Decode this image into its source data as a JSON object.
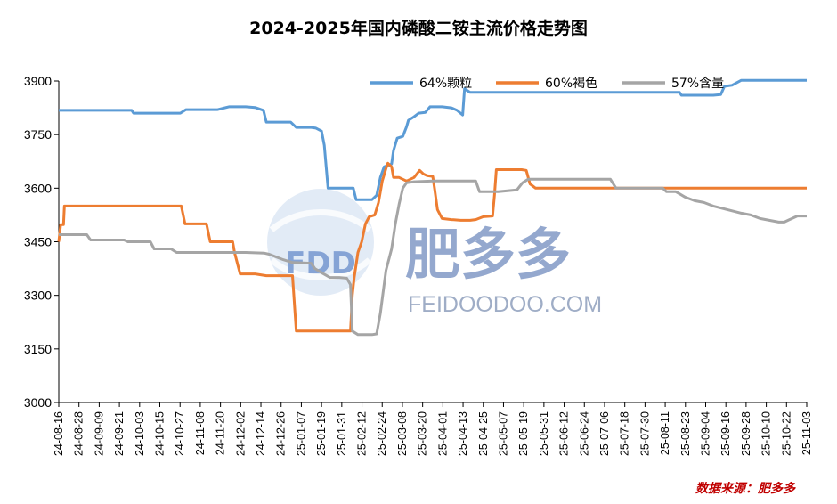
{
  "chart_data": {
    "type": "line",
    "title": "2024-2025年国内磷酸二铵主流价格走势图",
    "source_note": "数据来源：肥多多",
    "ylim": [
      3000,
      3900
    ],
    "yticks": [
      3000,
      3150,
      3300,
      3450,
      3600,
      3750,
      3900
    ],
    "x_tick_labels": [
      "24-08-16",
      "24-08-28",
      "24-09-09",
      "24-09-21",
      "24-10-03",
      "24-10-15",
      "24-10-27",
      "24-11-08",
      "24-11-20",
      "24-12-02",
      "24-12-14",
      "24-12-26",
      "25-01-07",
      "25-01-19",
      "25-01-31",
      "25-02-12",
      "25-02-24",
      "25-03-08",
      "25-03-20",
      "25-04-01",
      "25-04-13",
      "25-04-25",
      "25-05-07",
      "25-05-19",
      "25-05-31",
      "25-06-12",
      "25-06-24",
      "25-07-06",
      "25-07-18",
      "25-07-30",
      "25-08-11",
      "25-08-23",
      "25-09-04",
      "25-09-16",
      "25-09-28",
      "25-10-10",
      "25-10-22",
      "25-11-03"
    ],
    "x_tick_index_step": 12,
    "x_range_index": [
      0,
      444
    ],
    "series": [
      {
        "name": "64%颗粒",
        "color": "#5b9bd5",
        "points": [
          [
            0,
            3818
          ],
          [
            20,
            3818
          ],
          [
            40,
            3818
          ],
          [
            60,
            3818
          ],
          [
            78,
            3818
          ],
          [
            80,
            3810
          ],
          [
            100,
            3810
          ],
          [
            120,
            3810
          ],
          [
            130,
            3810
          ],
          [
            136,
            3820
          ],
          [
            150,
            3820
          ],
          [
            170,
            3820
          ],
          [
            182,
            3828
          ],
          [
            200,
            3828
          ],
          [
            210,
            3826
          ],
          [
            219,
            3818
          ],
          [
            222,
            3785
          ],
          [
            240,
            3785
          ],
          [
            248,
            3785
          ],
          [
            254,
            3770
          ],
          [
            270,
            3770
          ],
          [
            275,
            3768
          ],
          [
            281,
            3760
          ],
          [
            284,
            3720
          ],
          [
            286,
            3660
          ],
          [
            288,
            3600
          ],
          [
            300,
            3600
          ],
          [
            315,
            3600
          ],
          [
            318,
            3568
          ],
          [
            335,
            3568
          ],
          [
            340,
            3580
          ],
          [
            344,
            3630
          ],
          [
            348,
            3660
          ],
          [
            356,
            3668
          ],
          [
            358,
            3705
          ],
          [
            362,
            3740
          ],
          [
            368,
            3745
          ],
          [
            372,
            3772
          ],
          [
            374,
            3790
          ],
          [
            380,
            3800
          ],
          [
            385,
            3810
          ],
          [
            392,
            3812
          ],
          [
            397,
            3828
          ],
          [
            410,
            3828
          ],
          [
            420,
            3825
          ],
          [
            426,
            3818
          ],
          [
            432,
            3805
          ],
          [
            434,
            3878
          ],
          [
            440,
            3868
          ],
          [
            460,
            3868
          ],
          [
            480,
            3868
          ],
          [
            500,
            3868
          ],
          [
            520,
            3868
          ],
          [
            540,
            3868
          ],
          [
            560,
            3868
          ],
          [
            580,
            3868
          ],
          [
            600,
            3868
          ],
          [
            620,
            3868
          ],
          [
            640,
            3868
          ],
          [
            664,
            3868
          ],
          [
            666,
            3860
          ],
          [
            680,
            3860
          ],
          [
            700,
            3860
          ],
          [
            708,
            3862
          ],
          [
            712,
            3885
          ],
          [
            720,
            3888
          ],
          [
            730,
            3902
          ],
          [
            750,
            3902
          ],
          [
            770,
            3902
          ],
          [
            790,
            3902
          ],
          [
            800,
            3902
          ]
        ]
      },
      {
        "name": "60%褐色",
        "color": "#ed7d31",
        "points": [
          [
            0,
            3450
          ],
          [
            2,
            3498
          ],
          [
            5,
            3498
          ],
          [
            6,
            3550
          ],
          [
            20,
            3550
          ],
          [
            40,
            3550
          ],
          [
            60,
            3550
          ],
          [
            80,
            3550
          ],
          [
            100,
            3550
          ],
          [
            120,
            3550
          ],
          [
            131,
            3550
          ],
          [
            135,
            3500
          ],
          [
            150,
            3500
          ],
          [
            158,
            3500
          ],
          [
            162,
            3450
          ],
          [
            180,
            3450
          ],
          [
            186,
            3450
          ],
          [
            188,
            3420
          ],
          [
            192,
            3380
          ],
          [
            194,
            3360
          ],
          [
            210,
            3360
          ],
          [
            222,
            3355
          ],
          [
            240,
            3355
          ],
          [
            250,
            3355
          ],
          [
            254,
            3200
          ],
          [
            270,
            3200
          ],
          [
            290,
            3200
          ],
          [
            310,
            3200
          ],
          [
            312,
            3200
          ],
          [
            314,
            3300
          ],
          [
            316,
            3350
          ],
          [
            320,
            3420
          ],
          [
            324,
            3450
          ],
          [
            328,
            3500
          ],
          [
            332,
            3520
          ],
          [
            338,
            3525
          ],
          [
            342,
            3560
          ],
          [
            346,
            3620
          ],
          [
            350,
            3655
          ],
          [
            352,
            3670
          ],
          [
            356,
            3660
          ],
          [
            358,
            3630
          ],
          [
            364,
            3630
          ],
          [
            372,
            3620
          ],
          [
            380,
            3630
          ],
          [
            386,
            3650
          ],
          [
            390,
            3640
          ],
          [
            394,
            3635
          ],
          [
            400,
            3633
          ],
          [
            402,
            3598
          ],
          [
            405,
            3540
          ],
          [
            410,
            3515
          ],
          [
            420,
            3512
          ],
          [
            430,
            3510
          ],
          [
            440,
            3510
          ],
          [
            446,
            3512
          ],
          [
            454,
            3520
          ],
          [
            464,
            3522
          ],
          [
            466,
            3580
          ],
          [
            468,
            3652
          ],
          [
            480,
            3652
          ],
          [
            495,
            3652
          ],
          [
            500,
            3650
          ],
          [
            504,
            3612
          ],
          [
            510,
            3600
          ],
          [
            530,
            3600
          ],
          [
            550,
            3600
          ],
          [
            570,
            3600
          ],
          [
            590,
            3600
          ],
          [
            610,
            3600
          ],
          [
            630,
            3600
          ],
          [
            650,
            3600
          ],
          [
            670,
            3600
          ],
          [
            690,
            3600
          ],
          [
            710,
            3600
          ],
          [
            730,
            3600
          ],
          [
            750,
            3600
          ],
          [
            770,
            3600
          ],
          [
            790,
            3600
          ],
          [
            800,
            3600
          ]
        ]
      },
      {
        "name": "57%含量",
        "color": "#a5a5a5",
        "points": [
          [
            0,
            3470
          ],
          [
            20,
            3470
          ],
          [
            30,
            3470
          ],
          [
            34,
            3455
          ],
          [
            50,
            3455
          ],
          [
            70,
            3455
          ],
          [
            74,
            3450
          ],
          [
            90,
            3450
          ],
          [
            98,
            3450
          ],
          [
            102,
            3430
          ],
          [
            120,
            3430
          ],
          [
            126,
            3420
          ],
          [
            140,
            3420
          ],
          [
            160,
            3420
          ],
          [
            180,
            3420
          ],
          [
            200,
            3420
          ],
          [
            220,
            3418
          ],
          [
            225,
            3415
          ],
          [
            230,
            3410
          ],
          [
            240,
            3400
          ],
          [
            250,
            3392
          ],
          [
            270,
            3390
          ],
          [
            274,
            3375
          ],
          [
            282,
            3362
          ],
          [
            290,
            3350
          ],
          [
            300,
            3350
          ],
          [
            308,
            3348
          ],
          [
            312,
            3330
          ],
          [
            314,
            3200
          ],
          [
            320,
            3190
          ],
          [
            335,
            3190
          ],
          [
            340,
            3192
          ],
          [
            344,
            3250
          ],
          [
            350,
            3370
          ],
          [
            356,
            3430
          ],
          [
            360,
            3500
          ],
          [
            364,
            3555
          ],
          [
            368,
            3600
          ],
          [
            372,
            3615
          ],
          [
            380,
            3618
          ],
          [
            400,
            3620
          ],
          [
            420,
            3620
          ],
          [
            440,
            3620
          ],
          [
            446,
            3620
          ],
          [
            450,
            3590
          ],
          [
            470,
            3590
          ],
          [
            490,
            3595
          ],
          [
            496,
            3615
          ],
          [
            502,
            3625
          ],
          [
            520,
            3625
          ],
          [
            540,
            3625
          ],
          [
            560,
            3625
          ],
          [
            580,
            3625
          ],
          [
            590,
            3625
          ],
          [
            596,
            3600
          ],
          [
            610,
            3600
          ],
          [
            630,
            3600
          ],
          [
            646,
            3600
          ],
          [
            650,
            3590
          ],
          [
            660,
            3590
          ],
          [
            670,
            3575
          ],
          [
            680,
            3565
          ],
          [
            690,
            3560
          ],
          [
            700,
            3550
          ],
          [
            715,
            3540
          ],
          [
            730,
            3530
          ],
          [
            740,
            3525
          ],
          [
            750,
            3515
          ],
          [
            760,
            3510
          ],
          [
            770,
            3505
          ],
          [
            776,
            3505
          ],
          [
            780,
            3510
          ],
          [
            790,
            3522
          ],
          [
            800,
            3522
          ]
        ]
      }
    ]
  },
  "watermark": {
    "logo_text": "FDD",
    "brand_cn": "肥多多",
    "url": "FEIDOODOO.COM"
  }
}
